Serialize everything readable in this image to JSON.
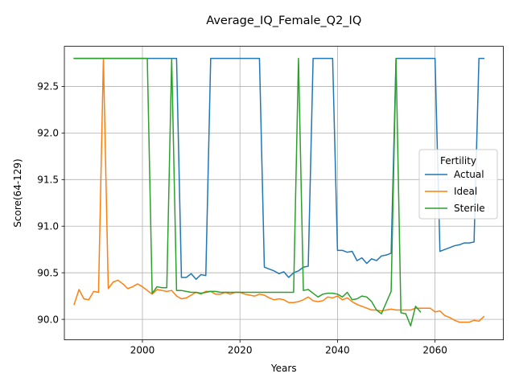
{
  "chart_data": {
    "type": "line",
    "title": "Average_IQ_Female_Q2_IQ",
    "xlabel": "Years",
    "ylabel": "Score(64-129)",
    "xlim": [
      1984,
      2074
    ],
    "ylim": [
      89.78,
      92.93
    ],
    "xticks": [
      2000,
      2020,
      2040,
      2060
    ],
    "yticks": [
      90.0,
      90.5,
      91.0,
      91.5,
      92.0,
      92.5
    ],
    "grid": true,
    "legend": {
      "title": "Fertility",
      "placement": "center-right"
    },
    "series": [
      {
        "name": "Actual",
        "color": "#1f77b4",
        "x": [
          1986,
          1987,
          1988,
          1989,
          1990,
          1991,
          1992,
          1993,
          1994,
          1995,
          1996,
          1997,
          1998,
          1999,
          2000,
          2001,
          2002,
          2003,
          2004,
          2005,
          2006,
          2007,
          2008,
          2009,
          2010,
          2011,
          2012,
          2013,
          2014,
          2015,
          2016,
          2017,
          2018,
          2019,
          2020,
          2021,
          2022,
          2023,
          2024,
          2025,
          2026,
          2027,
          2028,
          2029,
          2030,
          2031,
          2032,
          2033,
          2034,
          2035,
          2036,
          2037,
          2038,
          2039,
          2040,
          2041,
          2042,
          2043,
          2044,
          2045,
          2046,
          2047,
          2048,
          2049,
          2050,
          2051,
          2052,
          2053,
          2054,
          2055,
          2056,
          2057,
          2058,
          2059,
          2060,
          2061,
          2062,
          2063,
          2064,
          2065,
          2066,
          2067,
          2068,
          2069,
          2070
        ],
        "y": [
          92.8,
          92.8,
          92.8,
          92.8,
          92.8,
          92.8,
          92.8,
          92.8,
          92.8,
          92.8,
          92.8,
          92.8,
          92.8,
          92.8,
          92.8,
          92.8,
          92.8,
          92.8,
          92.8,
          92.8,
          92.8,
          92.8,
          90.45,
          90.45,
          90.49,
          90.43,
          90.48,
          90.47,
          92.8,
          92.8,
          92.8,
          92.8,
          92.8,
          92.8,
          92.8,
          92.8,
          92.8,
          92.8,
          92.8,
          90.56,
          90.54,
          90.52,
          90.49,
          90.51,
          90.45,
          90.5,
          90.52,
          90.56,
          90.57,
          92.8,
          92.8,
          92.8,
          92.8,
          92.8,
          90.74,
          90.74,
          90.72,
          90.73,
          90.63,
          90.66,
          90.6,
          90.65,
          90.63,
          90.68,
          90.69,
          90.71,
          92.8,
          92.8,
          92.8,
          92.8,
          92.8,
          92.8,
          92.8,
          92.8,
          92.8,
          90.73,
          90.75,
          90.77,
          90.79,
          90.8,
          90.82,
          90.82,
          90.83,
          92.8,
          92.8
        ]
      },
      {
        "name": "Ideal",
        "color": "#ff7f0e",
        "x": [
          1986,
          1987,
          1988,
          1989,
          1990,
          1991,
          1992,
          1993,
          1994,
          1995,
          1996,
          1997,
          1998,
          1999,
          2000,
          2001,
          2002,
          2003,
          2004,
          2005,
          2006,
          2007,
          2008,
          2009,
          2010,
          2011,
          2012,
          2013,
          2014,
          2015,
          2016,
          2017,
          2018,
          2019,
          2020,
          2021,
          2022,
          2023,
          2024,
          2025,
          2026,
          2027,
          2028,
          2029,
          2030,
          2031,
          2032,
          2033,
          2034,
          2035,
          2036,
          2037,
          2038,
          2039,
          2040,
          2041,
          2042,
          2043,
          2044,
          2045,
          2046,
          2047,
          2048,
          2049,
          2050,
          2051,
          2052,
          2053,
          2054,
          2055,
          2056,
          2057,
          2058,
          2059,
          2060,
          2061,
          2062,
          2063,
          2064,
          2065,
          2066,
          2067,
          2068,
          2069,
          2070
        ],
        "y": [
          90.16,
          90.32,
          90.22,
          90.21,
          90.3,
          90.29,
          92.8,
          90.33,
          90.4,
          90.42,
          90.38,
          90.33,
          90.35,
          90.38,
          90.35,
          90.31,
          90.27,
          90.32,
          90.31,
          90.3,
          90.31,
          90.25,
          90.22,
          90.23,
          90.26,
          90.29,
          90.27,
          90.3,
          90.3,
          90.27,
          90.27,
          90.29,
          90.27,
          90.29,
          90.29,
          90.27,
          90.26,
          90.25,
          90.27,
          90.26,
          90.23,
          90.21,
          90.22,
          90.21,
          90.18,
          90.18,
          90.19,
          90.21,
          90.24,
          90.2,
          90.19,
          90.2,
          90.24,
          90.23,
          90.25,
          90.21,
          90.23,
          90.19,
          90.16,
          90.14,
          90.12,
          90.1,
          90.1,
          90.09,
          90.1,
          90.11,
          90.1,
          90.1,
          90.1,
          90.1,
          90.12,
          90.12,
          90.12,
          90.12,
          90.08,
          90.09,
          90.04,
          90.02,
          89.99,
          89.97,
          89.97,
          89.97,
          89.99,
          89.98,
          90.03
        ]
      },
      {
        "name": "Sterile",
        "color": "#2ca02c",
        "x": [
          1986,
          1987,
          1988,
          1989,
          1990,
          1991,
          1992,
          1993,
          1994,
          1995,
          1996,
          1997,
          1998,
          1999,
          2000,
          2001,
          2002,
          2003,
          2004,
          2005,
          2006,
          2007,
          2008,
          2009,
          2010,
          2011,
          2012,
          2013,
          2014,
          2015,
          2016,
          2017,
          2018,
          2019,
          2020,
          2021,
          2022,
          2023,
          2024,
          2025,
          2026,
          2027,
          2028,
          2029,
          2030,
          2031,
          2032,
          2033,
          2034,
          2035,
          2036,
          2037,
          2038,
          2039,
          2040,
          2041,
          2042,
          2043,
          2044,
          2045,
          2046,
          2047,
          2048,
          2049,
          2050,
          2051,
          2052,
          2053,
          2054,
          2055,
          2056,
          2057
        ],
        "y": [
          92.8,
          92.8,
          92.8,
          92.8,
          92.8,
          92.8,
          92.8,
          92.8,
          92.8,
          92.8,
          92.8,
          92.8,
          92.8,
          92.8,
          92.8,
          92.8,
          90.28,
          90.35,
          90.34,
          90.34,
          92.8,
          90.31,
          90.31,
          90.3,
          90.29,
          90.29,
          90.28,
          90.29,
          90.3,
          90.3,
          90.29,
          90.29,
          90.29,
          90.29,
          90.29,
          90.29,
          90.29,
          90.29,
          90.29,
          90.29,
          90.29,
          90.29,
          90.29,
          90.29,
          90.29,
          90.29,
          92.8,
          90.31,
          90.32,
          90.28,
          90.24,
          90.27,
          90.28,
          90.28,
          90.27,
          90.24,
          90.29,
          90.21,
          90.22,
          90.25,
          90.24,
          90.19,
          90.1,
          90.06,
          90.18,
          90.3,
          92.8,
          90.07,
          90.06,
          89.93,
          90.14,
          90.08
        ]
      }
    ]
  }
}
